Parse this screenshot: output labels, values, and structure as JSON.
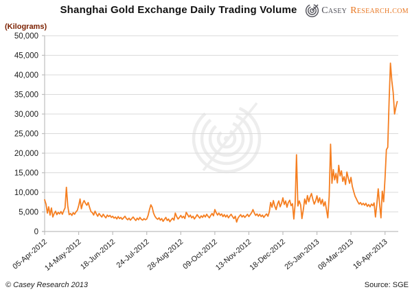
{
  "title": "Shanghai Gold Exchange Daily Trading Volume",
  "logo": {
    "icon": "spiral-logo-icon",
    "brand_primary": "Casey",
    "brand_secondary": "Research.com",
    "primary_color": "#4b4b54",
    "secondary_color": "#e87722"
  },
  "footer": {
    "copyright": "© Casey Research 2013",
    "source": "Source: SGE"
  },
  "chart_data": {
    "type": "line",
    "title": "Shanghai Gold Exchange Daily Trading Volume",
    "ylabel": "(Kilograms)",
    "xlabel": "",
    "ylim": [
      0,
      50000
    ],
    "ytick_step": 5000,
    "ytick_labels": [
      "0",
      "5,000",
      "10,000",
      "15,000",
      "20,000",
      "25,000",
      "30,000",
      "35,000",
      "40,000",
      "45,000",
      "50,000"
    ],
    "x_tick_labels": [
      "05-Apr-2012",
      "14-May-2012",
      "18-Jun-2012",
      "24-Jul-2012",
      "28-Aug-2012",
      "09-Oct-2012",
      "13-Nov-2012",
      "18-Dec-2012",
      "25-Jan-2013",
      "08-Mar-2013",
      "16-Apr-2013"
    ],
    "x_tick_indices": [
      0,
      25,
      50,
      75,
      100,
      125,
      150,
      175,
      200,
      225,
      250
    ],
    "grid": "horizontal",
    "legend": "none",
    "line_color": "#f57e20",
    "series_name": "Daily trading volume (kg)",
    "values": [
      8100,
      7000,
      4700,
      6300,
      4200,
      6000,
      3700,
      4600,
      5200,
      4300,
      4900,
      4500,
      5100,
      4400,
      5300,
      6000,
      11300,
      6500,
      4300,
      4600,
      4100,
      4800,
      4400,
      5000,
      5400,
      6600,
      8300,
      5800,
      7200,
      7900,
      7200,
      6700,
      7400,
      6200,
      5100,
      4800,
      4200,
      5200,
      4500,
      3900,
      4600,
      4100,
      3700,
      4400,
      3900,
      3500,
      4200,
      3800,
      4100,
      3600,
      3900,
      3400,
      3700,
      3200,
      3800,
      3300,
      3600,
      3100,
      3500,
      3900,
      3300,
      3000,
      3400,
      2900,
      3300,
      3700,
      3200,
      2800,
      3400,
      3000,
      3600,
      3100,
      2900,
      3300,
      3000,
      3200,
      4100,
      5600,
      6800,
      6200,
      4700,
      3900,
      3400,
      3100,
      3500,
      2900,
      3300,
      2600,
      3100,
      3600,
      2800,
      3200,
      2500,
      3000,
      3400,
      2900,
      4700,
      3800,
      3200,
      3600,
      4100,
      3500,
      3900,
      3300,
      4900,
      4300,
      3700,
      4200,
      3500,
      3900,
      3200,
      3700,
      4300,
      3800,
      3400,
      4000,
      3600,
      4200,
      3700,
      4400,
      3900,
      3500,
      4100,
      4600,
      4000,
      5600,
      4800,
      4200,
      4700,
      4100,
      4500,
      3800,
      4300,
      3700,
      4200,
      3500,
      4000,
      4400,
      3800,
      3300,
      3900,
      2400,
      3400,
      3900,
      4300,
      3700,
      4100,
      3600,
      4000,
      4400,
      3800,
      4300,
      4800,
      5600,
      4700,
      4100,
      4500,
      3900,
      4400,
      3800,
      4200,
      3600,
      4100,
      4500,
      3900,
      5000,
      7400,
      6200,
      7900,
      6500,
      5600,
      7000,
      7800,
      6300,
      7200,
      8600,
      6900,
      7800,
      6200,
      7400,
      8000,
      6600,
      7100,
      3200,
      7000,
      19600,
      6500,
      7800,
      6800,
      3300,
      5500,
      8300,
      7000,
      9200,
      7600,
      8800,
      9700,
      8200,
      7000,
      7800,
      9100,
      7400,
      8600,
      7000,
      8200,
      6500,
      7600,
      5600,
      3500,
      9000,
      22300,
      12300,
      15800,
      13200,
      14800,
      12400,
      16900,
      14200,
      15500,
      12800,
      14000,
      12000,
      15200,
      13600,
      12300,
      13800,
      11500,
      10200,
      9000,
      8300,
      7600,
      7000,
      7400,
      6800,
      7200,
      6700,
      7200,
      6400,
      6900,
      6300,
      7000,
      6600,
      7300,
      3700,
      7000,
      10900,
      7000,
      3500,
      10300,
      7600,
      13500,
      20900,
      21500,
      33000,
      43000,
      38500,
      35500,
      30000,
      31800,
      33200
    ]
  }
}
